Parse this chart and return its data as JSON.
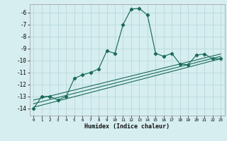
{
  "xlabel": "Humidex (Indice chaleur)",
  "bg_color": "#d6eef0",
  "grid_color": "#b8d8dc",
  "line_color": "#1a6b5a",
  "xlim": [
    -0.5,
    23.5
  ],
  "ylim": [
    -14.6,
    -5.3
  ],
  "yticks": [
    -14,
    -13,
    -12,
    -11,
    -10,
    -9,
    -8,
    -7,
    -6
  ],
  "xticks": [
    0,
    1,
    2,
    3,
    4,
    5,
    6,
    7,
    8,
    9,
    10,
    11,
    12,
    13,
    14,
    15,
    16,
    17,
    18,
    19,
    20,
    21,
    22,
    23
  ],
  "main_x": [
    0,
    1,
    2,
    3,
    4,
    5,
    6,
    7,
    8,
    9,
    10,
    11,
    12,
    13,
    14,
    15,
    16,
    17,
    18,
    19,
    20,
    21,
    22,
    23
  ],
  "main_y": [
    -14.0,
    -13.0,
    -13.0,
    -13.3,
    -13.0,
    -11.5,
    -11.2,
    -11.0,
    -10.7,
    -9.2,
    -9.4,
    -7.0,
    -5.7,
    -5.65,
    -6.2,
    -9.4,
    -9.65,
    -9.4,
    -10.3,
    -10.35,
    -9.55,
    -9.45,
    -9.85,
    -9.85
  ],
  "line1_x": [
    0,
    23
  ],
  "line1_y": [
    -13.9,
    -9.85
  ],
  "line2_x": [
    0,
    23
  ],
  "line2_y": [
    -13.6,
    -9.65
  ],
  "line3_x": [
    0,
    23
  ],
  "line3_y": [
    -13.3,
    -9.45
  ]
}
